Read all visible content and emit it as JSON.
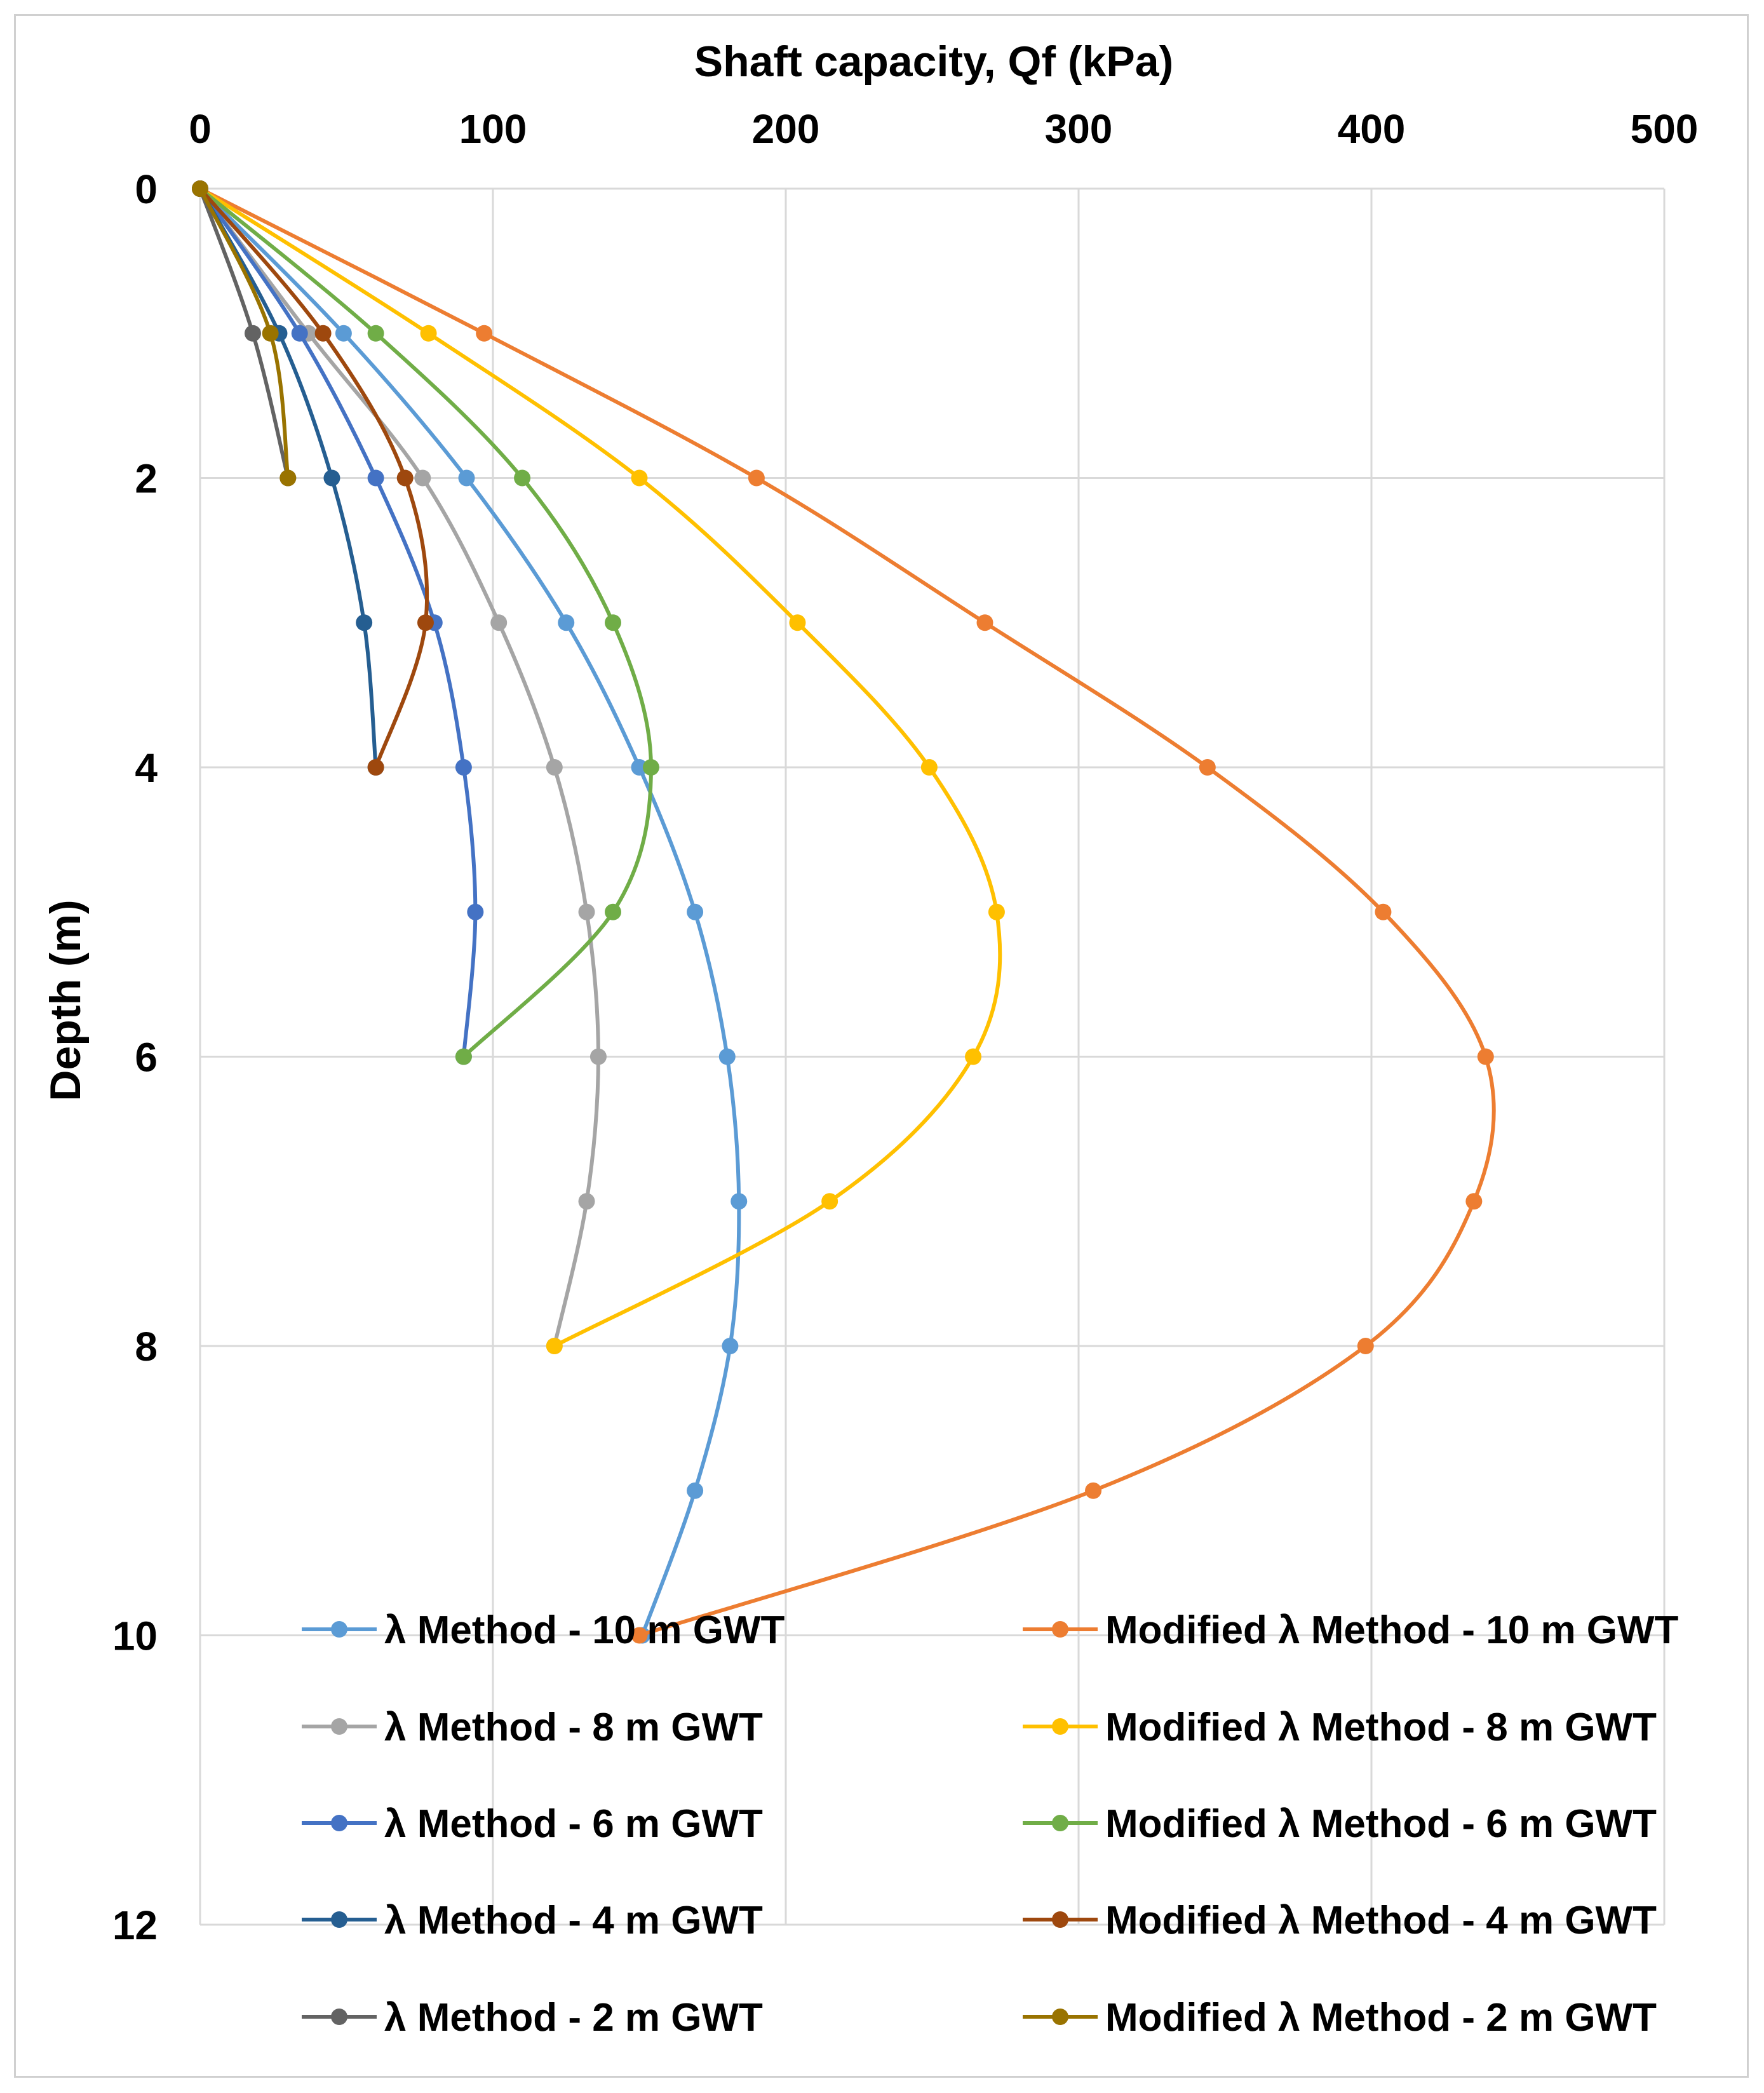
{
  "chart_data": {
    "type": "line",
    "title": "",
    "xlabel": "Shaft capacity, Qf (kPa)",
    "ylabel": "Depth (m)",
    "xlim": [
      0,
      500
    ],
    "ylim": [
      0,
      12
    ],
    "y_inverted": true,
    "x_axis_position": "top",
    "x_ticks": [
      0,
      100,
      200,
      300,
      400,
      500
    ],
    "y_ticks": [
      0,
      2,
      4,
      6,
      8,
      10,
      12
    ],
    "grid": true,
    "smooth": true,
    "legend_position": "bottom-inside",
    "series": [
      {
        "name": "λ Method - 10 m GWT",
        "color": "#5B9BD5",
        "points": [
          [
            0,
            0
          ],
          [
            49,
            1
          ],
          [
            91,
            2
          ],
          [
            125,
            3
          ],
          [
            150,
            4
          ],
          [
            169,
            5
          ],
          [
            180,
            6
          ],
          [
            184,
            7
          ],
          [
            181,
            8
          ],
          [
            169,
            9
          ],
          [
            151,
            10
          ]
        ]
      },
      {
        "name": "Modified λ  Method - 10 m GWT",
        "color": "#ED7D31",
        "points": [
          [
            0,
            0
          ],
          [
            97,
            1
          ],
          [
            190,
            2
          ],
          [
            268,
            3
          ],
          [
            344,
            4
          ],
          [
            404,
            5
          ],
          [
            439,
            6
          ],
          [
            435,
            7
          ],
          [
            398,
            8
          ],
          [
            305,
            9
          ],
          [
            150,
            10
          ]
        ]
      },
      {
        "name": "λ Method - 8 m GWT",
        "color": "#A5A5A5",
        "points": [
          [
            0,
            0
          ],
          [
            37,
            1
          ],
          [
            76,
            2
          ],
          [
            102,
            3
          ],
          [
            121,
            4
          ],
          [
            132,
            5
          ],
          [
            136,
            6
          ],
          [
            132,
            7
          ],
          [
            121,
            8
          ]
        ]
      },
      {
        "name": "Modified λ  Method - 8 m GWT",
        "color": "#FFC000",
        "points": [
          [
            0,
            0
          ],
          [
            78,
            1
          ],
          [
            150,
            2
          ],
          [
            204,
            3
          ],
          [
            249,
            4
          ],
          [
            272,
            5
          ],
          [
            264,
            6
          ],
          [
            215,
            7
          ],
          [
            121,
            8
          ]
        ]
      },
      {
        "name": "λ Method - 6 m GWT",
        "color": "#4472C4",
        "points": [
          [
            0,
            0
          ],
          [
            34,
            1
          ],
          [
            60,
            2
          ],
          [
            80,
            3
          ],
          [
            90,
            4
          ],
          [
            94,
            5
          ],
          [
            90,
            6
          ]
        ]
      },
      {
        "name": "Modified λ  Method - 6 m GWT",
        "color": "#70AD47",
        "points": [
          [
            0,
            0
          ],
          [
            60,
            1
          ],
          [
            110,
            2
          ],
          [
            141,
            3
          ],
          [
            154,
            4
          ],
          [
            141,
            5
          ],
          [
            90,
            6
          ]
        ]
      },
      {
        "name": "λ Method - 4 m GWT",
        "color": "#255E91",
        "points": [
          [
            0,
            0
          ],
          [
            27,
            1
          ],
          [
            45,
            2
          ],
          [
            56,
            3
          ],
          [
            60,
            4
          ]
        ]
      },
      {
        "name": "Modified λ  Method - 4 m GWT",
        "color": "#9E480E",
        "points": [
          [
            0,
            0
          ],
          [
            42,
            1
          ],
          [
            70,
            2
          ],
          [
            77,
            3
          ],
          [
            60,
            4
          ]
        ]
      },
      {
        "name": "λ Method - 2 m GWT",
        "color": "#636363",
        "points": [
          [
            0,
            0
          ],
          [
            18,
            1
          ],
          [
            30,
            2
          ]
        ]
      },
      {
        "name": "Modified λ  Method - 2 m GWT",
        "color": "#997300",
        "points": [
          [
            0,
            0
          ],
          [
            24,
            1
          ],
          [
            30,
            2
          ]
        ]
      }
    ]
  }
}
